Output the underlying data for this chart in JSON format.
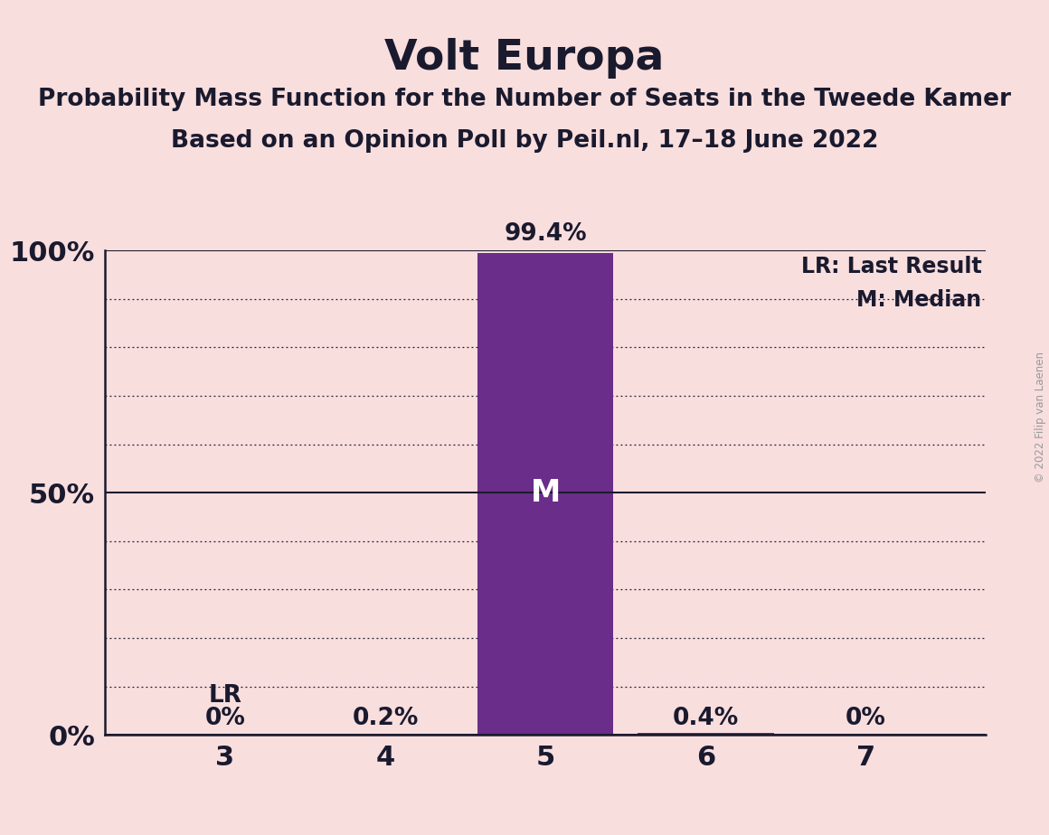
{
  "title": "Volt Europa",
  "subtitle1": "Probability Mass Function for the Number of Seats in the Tweede Kamer",
  "subtitle2": "Based on an Opinion Poll by Peil.nl, 17–18 June 2022",
  "copyright": "© 2022 Filip van Laenen",
  "seats": [
    3,
    4,
    5,
    6,
    7
  ],
  "probabilities": [
    0.0,
    0.002,
    0.994,
    0.004,
    0.0
  ],
  "bar_color": "#6a2d8a",
  "background_color": "#f9dede",
  "median_seat": 5,
  "last_result_seat": 3,
  "legend_lr": "LR: Last Result",
  "legend_m": "M: Median",
  "ylim": [
    0,
    1.0
  ],
  "yticks": [
    0.0,
    0.1,
    0.2,
    0.3,
    0.4,
    0.5,
    0.6,
    0.7,
    0.8,
    0.9,
    1.0
  ],
  "ytick_display": [
    "0%",
    "",
    "",
    "",
    "",
    "50%",
    "",
    "",
    "",
    "",
    "100%"
  ],
  "solid_lines": [
    0.0,
    0.5,
    1.0
  ],
  "dotted_lines": [
    0.1,
    0.2,
    0.3,
    0.4,
    0.6,
    0.7,
    0.8,
    0.9
  ],
  "title_fontsize": 34,
  "subtitle_fontsize": 19,
  "axis_label_fontsize": 22,
  "bar_label_fontsize": 19,
  "legend_fontsize": 17,
  "median_label_fontsize": 24,
  "lr_label_fontsize": 19,
  "bar_width": 0.85
}
